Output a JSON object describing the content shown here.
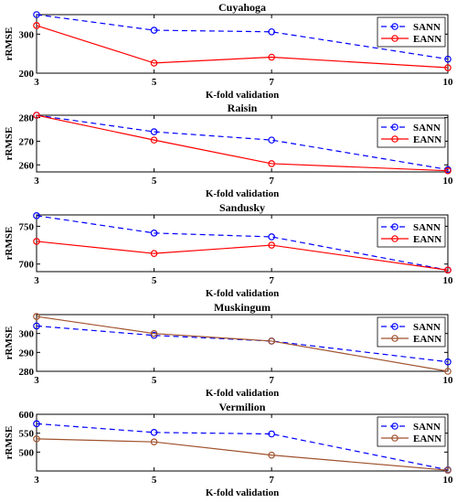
{
  "chart_data": [
    {
      "type": "line",
      "title": "Cuyahoga",
      "xlabel": "K-fold validation",
      "ylabel": "rRMSE",
      "x": [
        3,
        5,
        7,
        10
      ],
      "xlim": [
        3,
        10
      ],
      "ylim": [
        200,
        350
      ],
      "yticks": [
        200,
        300
      ],
      "series": [
        {
          "name": "SANN",
          "color": "#0000ff",
          "style": "dashed",
          "values": [
            350,
            310,
            306,
            236
          ]
        },
        {
          "name": "EANN",
          "color": "#ff0000",
          "style": "solid",
          "values": [
            322,
            226,
            241,
            214
          ]
        }
      ],
      "legend": "top-right"
    },
    {
      "type": "line",
      "title": "Raisin",
      "xlabel": "K-fold validation",
      "ylabel": "rRMSE",
      "x": [
        3,
        5,
        7,
        10
      ],
      "xlim": [
        3,
        10
      ],
      "ylim": [
        257,
        281
      ],
      "yticks": [
        260,
        270,
        280
      ],
      "series": [
        {
          "name": "SANN",
          "color": "#0000ff",
          "style": "dashed",
          "values": [
            281,
            274,
            270.5,
            258
          ]
        },
        {
          "name": "EANN",
          "color": "#ff0000",
          "style": "solid",
          "values": [
            281,
            270.5,
            260.5,
            257.5
          ]
        }
      ],
      "legend": "top-right"
    },
    {
      "type": "line",
      "title": "Sandusky",
      "xlabel": "K-fold validation",
      "ylabel": "rRMSE",
      "x": [
        3,
        5,
        7,
        10
      ],
      "xlim": [
        3,
        10
      ],
      "ylim": [
        690,
        765
      ],
      "yticks": [
        700,
        750
      ],
      "series": [
        {
          "name": "SANN",
          "color": "#0000ff",
          "style": "dashed",
          "values": [
            764,
            741,
            736,
            692
          ]
        },
        {
          "name": "EANN",
          "color": "#ff0000",
          "style": "solid",
          "values": [
            730,
            714,
            725,
            692
          ]
        }
      ],
      "legend": "top-right"
    },
    {
      "type": "line",
      "title": "Muskingum",
      "xlabel": "K-fold validation",
      "ylabel": "rRMSE",
      "x": [
        3,
        5,
        7,
        10
      ],
      "xlim": [
        3,
        10
      ],
      "ylim": [
        280,
        310
      ],
      "yticks": [
        280,
        290,
        300
      ],
      "series": [
        {
          "name": "SANN",
          "color": "#0000ff",
          "style": "dashed",
          "values": [
            304,
            299,
            296,
            285
          ]
        },
        {
          "name": "EANN",
          "color": "#a0522d",
          "style": "solid",
          "values": [
            309,
            300,
            296,
            280
          ]
        }
      ],
      "legend": "top-right"
    },
    {
      "type": "line",
      "title": "Vermilion",
      "xlabel": "K-fold validation",
      "ylabel": "rRMSE",
      "x": [
        3,
        5,
        7,
        10
      ],
      "xlim": [
        3,
        10
      ],
      "ylim": [
        450,
        600
      ],
      "yticks": [
        500,
        550,
        600
      ],
      "series": [
        {
          "name": "SANN",
          "color": "#0000ff",
          "style": "dashed",
          "values": [
            575,
            552,
            548,
            453
          ]
        },
        {
          "name": "EANN",
          "color": "#a0522d",
          "style": "solid",
          "values": [
            535,
            527,
            492,
            452
          ]
        }
      ],
      "legend": "top-right"
    }
  ]
}
